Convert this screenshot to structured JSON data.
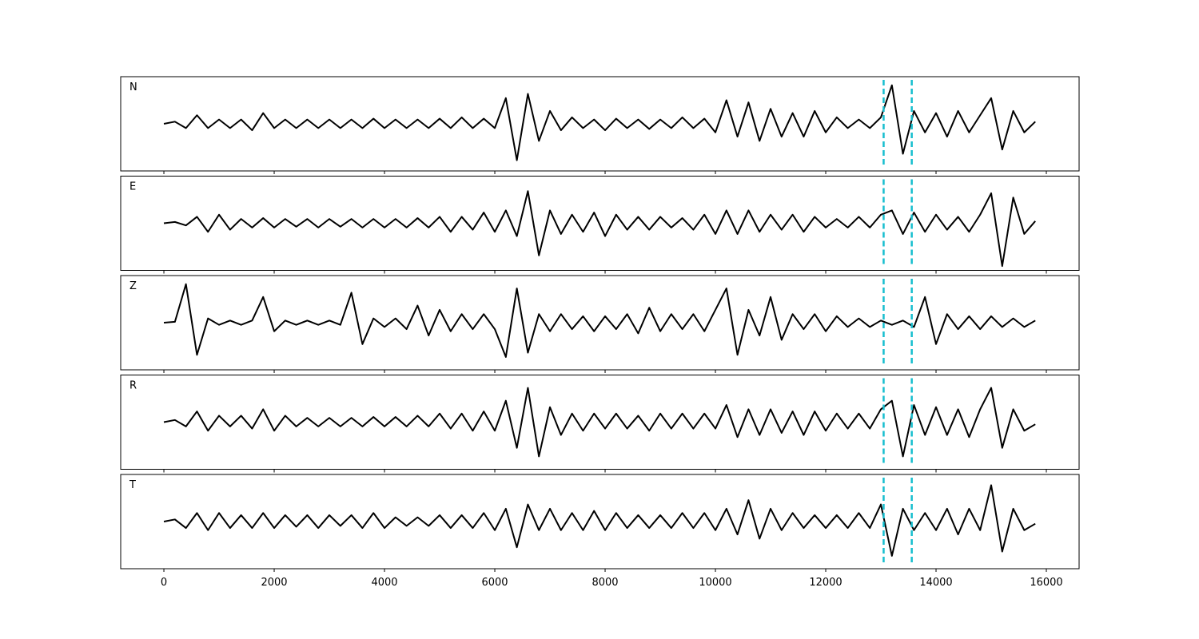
{
  "chart_data": {
    "type": "line",
    "subplots": true,
    "x": [
      0,
      200,
      400,
      600,
      800,
      1000,
      1200,
      1400,
      1600,
      1800,
      2000,
      2200,
      2400,
      2600,
      2800,
      3000,
      3200,
      3400,
      3600,
      3800,
      4000,
      4200,
      4400,
      4600,
      4800,
      5000,
      5200,
      5400,
      5600,
      5800,
      6000,
      6200,
      6400,
      6600,
      6800,
      7000,
      7200,
      7400,
      7600,
      7800,
      8000,
      8200,
      8400,
      8600,
      8800,
      9000,
      9200,
      9400,
      9600,
      9800,
      10000,
      10200,
      10400,
      10600,
      10800,
      11000,
      11200,
      11400,
      11600,
      11800,
      12000,
      12200,
      12400,
      12600,
      12800,
      13000,
      13200,
      13400,
      13600,
      13800,
      14000,
      14200,
      14400,
      14600,
      14800,
      15000,
      15200,
      15400,
      15600,
      15800
    ],
    "xlim": [
      -783,
      16594
    ],
    "xticks": [
      0,
      2000,
      4000,
      6000,
      8000,
      10000,
      12000,
      14000,
      16000
    ],
    "ylim": [
      -1.1,
      1.1
    ],
    "markers": [
      13050,
      13560
    ],
    "marker_color": "#17becf",
    "series": [
      {
        "name": "N",
        "color": "#000000",
        "values": [
          0,
          0.05,
          -0.1,
          0.2,
          -0.1,
          0.1,
          -0.1,
          0.1,
          -0.15,
          0.25,
          -0.1,
          0.1,
          -0.1,
          0.1,
          -0.1,
          0.1,
          -0.1,
          0.1,
          -0.1,
          0.12,
          -0.1,
          0.1,
          -0.1,
          0.1,
          -0.1,
          0.12,
          -0.1,
          0.15,
          -0.1,
          0.12,
          -0.1,
          0.6,
          -0.85,
          0.7,
          -0.4,
          0.3,
          -0.15,
          0.15,
          -0.1,
          0.1,
          -0.15,
          0.12,
          -0.1,
          0.1,
          -0.12,
          0.1,
          -0.1,
          0.15,
          -0.1,
          0.12,
          -0.2,
          0.55,
          -0.3,
          0.5,
          -0.4,
          0.35,
          -0.3,
          0.25,
          -0.3,
          0.3,
          -0.2,
          0.15,
          -0.1,
          0.1,
          -0.1,
          0.15,
          0.9,
          -0.7,
          0.3,
          -0.2,
          0.25,
          -0.3,
          0.3,
          -0.2,
          0.2,
          0.6,
          -0.6,
          0.3,
          -0.2,
          0.05
        ]
      },
      {
        "name": "E",
        "color": "#000000",
        "values": [
          0,
          0.03,
          -0.05,
          0.15,
          -0.2,
          0.2,
          -0.15,
          0.1,
          -0.1,
          0.12,
          -0.1,
          0.1,
          -0.08,
          0.1,
          -0.1,
          0.1,
          -0.08,
          0.1,
          -0.1,
          0.1,
          -0.1,
          0.1,
          -0.1,
          0.12,
          -0.1,
          0.15,
          -0.2,
          0.15,
          -0.15,
          0.25,
          -0.2,
          0.3,
          -0.3,
          0.75,
          -0.75,
          0.3,
          -0.25,
          0.2,
          -0.2,
          0.25,
          -0.3,
          0.2,
          -0.15,
          0.15,
          -0.15,
          0.15,
          -0.1,
          0.12,
          -0.15,
          0.2,
          -0.25,
          0.3,
          -0.25,
          0.3,
          -0.2,
          0.2,
          -0.15,
          0.2,
          -0.2,
          0.15,
          -0.1,
          0.1,
          -0.1,
          0.15,
          -0.1,
          0.2,
          0.3,
          -0.25,
          0.25,
          -0.2,
          0.2,
          -0.15,
          0.15,
          -0.2,
          0.2,
          0.7,
          -1.0,
          0.6,
          -0.25,
          0.05
        ]
      },
      {
        "name": "Z",
        "color": "#000000",
        "values": [
          0,
          0.02,
          0.9,
          -0.75,
          0.1,
          -0.05,
          0.05,
          -0.05,
          0.05,
          0.6,
          -0.2,
          0.05,
          -0.05,
          0.05,
          -0.05,
          0.05,
          -0.05,
          0.7,
          -0.5,
          0.1,
          -0.1,
          0.1,
          -0.15,
          0.4,
          -0.3,
          0.3,
          -0.2,
          0.2,
          -0.15,
          0.2,
          -0.15,
          -0.8,
          0.8,
          -0.7,
          0.2,
          -0.2,
          0.2,
          -0.15,
          0.15,
          -0.2,
          0.15,
          -0.15,
          0.2,
          -0.25,
          0.35,
          -0.2,
          0.2,
          -0.15,
          0.2,
          -0.2,
          0.3,
          0.8,
          -0.75,
          0.3,
          -0.3,
          0.6,
          -0.4,
          0.2,
          -0.15,
          0.2,
          -0.2,
          0.15,
          -0.1,
          0.1,
          -0.1,
          0.05,
          -0.05,
          0.05,
          -0.1,
          0.6,
          -0.5,
          0.2,
          -0.15,
          0.15,
          -0.15,
          0.15,
          -0.1,
          0.1,
          -0.1,
          0.05
        ]
      },
      {
        "name": "R",
        "color": "#000000",
        "values": [
          0,
          0.05,
          -0.1,
          0.25,
          -0.2,
          0.15,
          -0.1,
          0.15,
          -0.15,
          0.3,
          -0.2,
          0.15,
          -0.1,
          0.1,
          -0.1,
          0.1,
          -0.1,
          0.1,
          -0.1,
          0.12,
          -0.1,
          0.12,
          -0.1,
          0.15,
          -0.1,
          0.2,
          -0.15,
          0.2,
          -0.2,
          0.25,
          -0.2,
          0.5,
          -0.6,
          0.8,
          -0.8,
          0.35,
          -0.3,
          0.2,
          -0.2,
          0.2,
          -0.15,
          0.2,
          -0.15,
          0.15,
          -0.2,
          0.2,
          -0.15,
          0.2,
          -0.15,
          0.2,
          -0.15,
          0.4,
          -0.35,
          0.3,
          -0.3,
          0.3,
          -0.25,
          0.25,
          -0.3,
          0.25,
          -0.2,
          0.2,
          -0.15,
          0.2,
          -0.15,
          0.3,
          0.5,
          -0.8,
          0.4,
          -0.3,
          0.35,
          -0.3,
          0.3,
          -0.35,
          0.3,
          0.8,
          -0.6,
          0.3,
          -0.2,
          -0.05
        ]
      },
      {
        "name": "T",
        "color": "#000000",
        "values": [
          0,
          0.05,
          -0.15,
          0.2,
          -0.2,
          0.2,
          -0.15,
          0.15,
          -0.15,
          0.2,
          -0.15,
          0.15,
          -0.12,
          0.15,
          -0.15,
          0.15,
          -0.1,
          0.15,
          -0.15,
          0.2,
          -0.15,
          0.1,
          -0.1,
          0.1,
          -0.1,
          0.15,
          -0.15,
          0.15,
          -0.15,
          0.2,
          -0.2,
          0.3,
          -0.6,
          0.4,
          -0.2,
          0.3,
          -0.2,
          0.2,
          -0.2,
          0.25,
          -0.2,
          0.2,
          -0.15,
          0.15,
          -0.15,
          0.15,
          -0.15,
          0.2,
          -0.15,
          0.2,
          -0.2,
          0.3,
          -0.3,
          0.5,
          -0.4,
          0.3,
          -0.2,
          0.2,
          -0.15,
          0.15,
          -0.15,
          0.15,
          -0.15,
          0.2,
          -0.15,
          0.4,
          -0.8,
          0.3,
          -0.2,
          0.2,
          -0.2,
          0.3,
          -0.3,
          0.3,
          -0.2,
          0.85,
          -0.7,
          0.3,
          -0.2,
          -0.05
        ]
      }
    ]
  }
}
